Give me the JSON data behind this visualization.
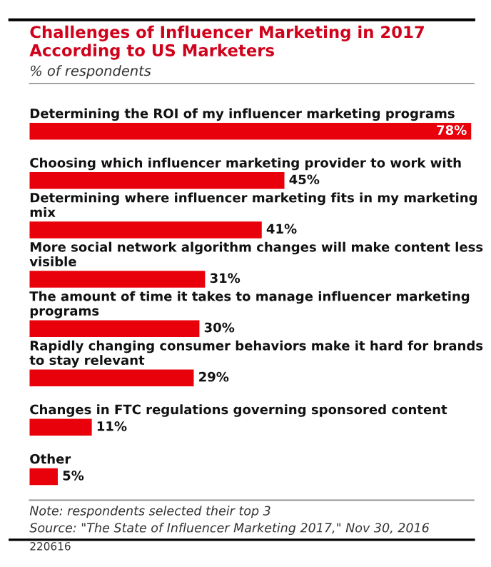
{
  "chart_data": {
    "type": "bar",
    "orientation": "horizontal",
    "title": "Challenges of Influencer Marketing in 2017 According to US Marketers",
    "subtitle": "% of respondents",
    "categories": [
      "Determining the ROI of my influencer marketing programs",
      "Choosing which influencer marketing provider to work with",
      "Determining where influencer marketing fits in my marketing mix",
      "More social network algorithm changes will make content less visible",
      "The amount of time it takes to manage influencer marketing programs",
      "Rapidly changing consumer behaviors make it hard for brands to stay relevant",
      "Changes in FTC regulations governing sponsored content",
      "Other"
    ],
    "values": [
      78,
      45,
      41,
      31,
      30,
      29,
      11,
      5
    ],
    "value_labels": [
      "78%",
      "45%",
      "41%",
      "31%",
      "30%",
      "29%",
      "11%",
      "5%"
    ],
    "color": "#e8000b",
    "annotations": [
      "Note: respondents selected their top 3",
      "Source: \"The State of Influencer Marketing 2017,\" Nov 30, 2016",
      "220616"
    ]
  }
}
